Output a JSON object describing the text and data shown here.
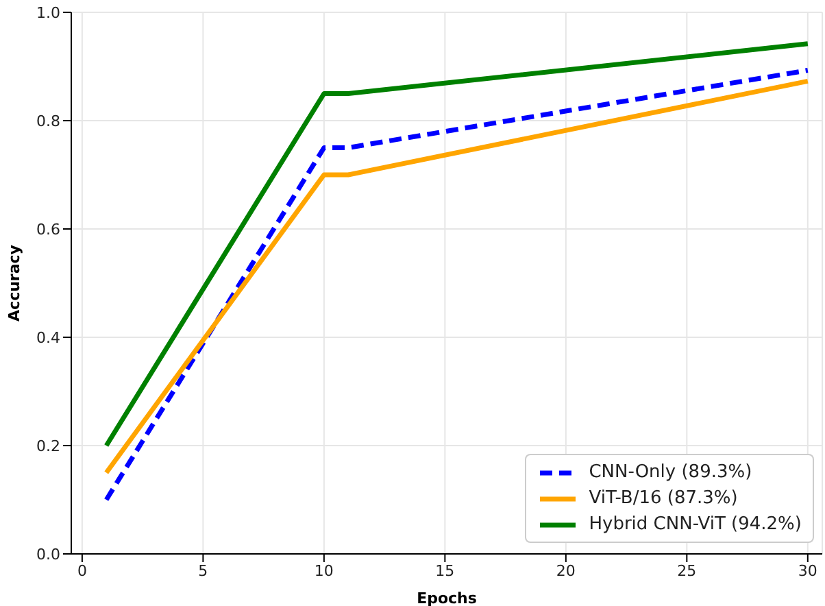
{
  "chart_data": {
    "type": "line",
    "xlabel": "Epochs",
    "ylabel": "Accuracy",
    "x": [
      1,
      10,
      11,
      30
    ],
    "series": [
      {
        "name": "CNN-Only (89.3%)",
        "color": "#0000ff",
        "values": [
          0.1,
          0.75,
          0.75,
          0.893
        ],
        "line_style": "dashed"
      },
      {
        "name": "ViT-B/16 (87.3%)",
        "color": "#ffa500",
        "values": [
          0.15,
          0.7,
          0.7,
          0.873
        ],
        "line_style": "solid"
      },
      {
        "name": "Hybrid CNN-ViT (94.2%)",
        "color": "#008000",
        "values": [
          0.2,
          0.85,
          0.85,
          0.942
        ],
        "line_style": "solid"
      }
    ],
    "xlim": [
      -0.45,
      30.6
    ],
    "xticks": [
      0,
      5,
      10,
      15,
      20,
      25,
      30
    ],
    "ylim": [
      0,
      1
    ],
    "yticks": [
      {
        "value": 0,
        "label": "0.0"
      },
      0.2,
      0.4,
      0.6,
      0.8,
      {
        "value": 1,
        "label": "1.0"
      }
    ],
    "grid": true,
    "legend": "bottom right",
    "marker": "none"
  }
}
